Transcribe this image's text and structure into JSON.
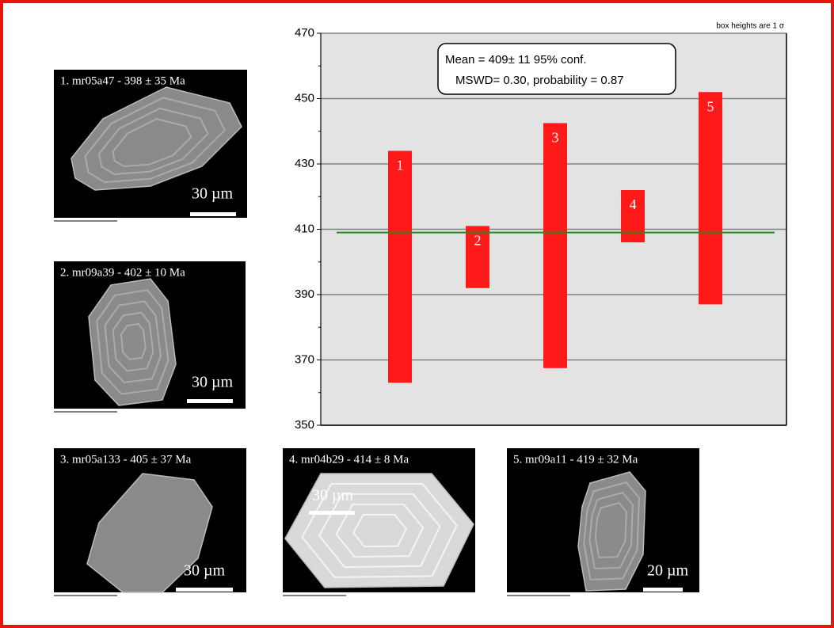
{
  "chart_data": {
    "type": "box",
    "note": "box heights are 1 σ",
    "annotation": [
      "Mean = 409± 11  95% conf.",
      "MSWD= 0.30, probability = 0.87"
    ],
    "mean": 409,
    "mean_color": "#1e8c1e",
    "box_color": "#ff1a1a",
    "ylim": [
      350,
      470
    ],
    "yticks": [
      350,
      370,
      390,
      410,
      430,
      450,
      470
    ],
    "grid": true,
    "boxes": [
      {
        "label": "1",
        "low": 363,
        "high": 434
      },
      {
        "label": "2",
        "low": 392,
        "high": 411
      },
      {
        "label": "3",
        "low": 367.5,
        "high": 442.5
      },
      {
        "label": "4",
        "low": 406,
        "high": 422
      },
      {
        "label": "5",
        "low": 387,
        "high": 452
      }
    ]
  },
  "images": [
    {
      "caption": "1. mr05a47 - 398 ± 35 Ma",
      "scale": "30 µm"
    },
    {
      "caption": "2. mr09a39 - 402 ± 10 Ma",
      "scale": "30 µm"
    },
    {
      "caption": "3. mr05a133 - 405 ± 37 Ma",
      "scale": "30 µm"
    },
    {
      "caption": "4. mr04b29 - 414 ± 8 Ma",
      "scale": "30 µm"
    },
    {
      "caption": "5. mr09a11 - 419 ± 32 Ma",
      "scale": "20 µm"
    }
  ]
}
